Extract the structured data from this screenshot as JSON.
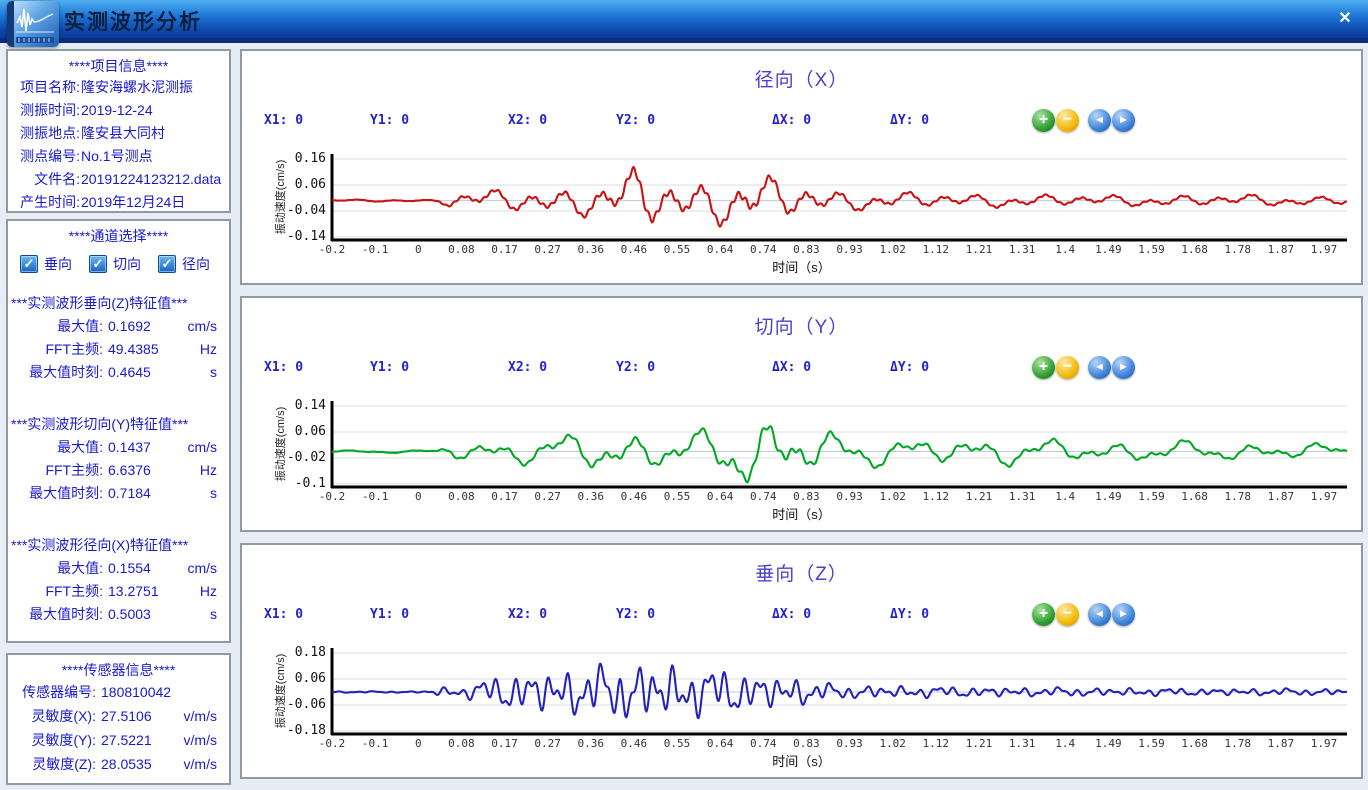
{
  "window": {
    "title": "实测波形分析",
    "close_glyph": "✕"
  },
  "sidebar": {
    "project_info": {
      "header": "****项目信息****",
      "rows": [
        {
          "label": "项目名称:",
          "value": "隆安海螺水泥测振"
        },
        {
          "label": "测振时间:",
          "value": "2019-12-24"
        },
        {
          "label": "测振地点:",
          "value": "隆安县大同村"
        },
        {
          "label": "测点编号:",
          "value": "No.1号测点"
        },
        {
          "label": "文件名:",
          "value": "20191224123212.data"
        },
        {
          "label": "产生时间:",
          "value": "2019年12月24日"
        }
      ]
    },
    "channel_select": {
      "header": "****通道选择****",
      "options": [
        {
          "name": "vertical",
          "label": "垂向",
          "checked": true
        },
        {
          "name": "tangential",
          "label": "切向",
          "checked": true
        },
        {
          "name": "radial",
          "label": "径向",
          "checked": true
        }
      ]
    },
    "feature_sections": [
      {
        "header": "***实测波形垂向(Z)特征值***",
        "rows": [
          {
            "label": "最大值:",
            "value": "0.1692",
            "unit": "cm/s"
          },
          {
            "label": "FFT主频:",
            "value": "49.4385",
            "unit": "Hz"
          },
          {
            "label": "最大值时刻:",
            "value": "0.4645",
            "unit": "s"
          }
        ]
      },
      {
        "header": "***实测波形切向(Y)特征值***",
        "rows": [
          {
            "label": "最大值:",
            "value": "0.1437",
            "unit": "cm/s"
          },
          {
            "label": "FFT主频:",
            "value": "6.6376",
            "unit": "Hz"
          },
          {
            "label": "最大值时刻:",
            "value": "0.7184",
            "unit": "s"
          }
        ]
      },
      {
        "header": "***实测波形径向(X)特征值***",
        "rows": [
          {
            "label": "最大值:",
            "value": "0.1554",
            "unit": "cm/s"
          },
          {
            "label": "FFT主频:",
            "value": "13.2751",
            "unit": "Hz"
          },
          {
            "label": "最大值时刻:",
            "value": "0.5003",
            "unit": "s"
          }
        ]
      }
    ],
    "sensor_info": {
      "header": "****传感器信息****",
      "rows": [
        {
          "label": "传感器编号:",
          "value": "180810042",
          "unit": ""
        },
        {
          "label": "灵敏度(X):",
          "value": "27.5106",
          "unit": "v/m/s"
        },
        {
          "label": "灵敏度(Y):",
          "value": "27.5221",
          "unit": "v/m/s"
        },
        {
          "label": "灵敏度(Z):",
          "value": "28.0535",
          "unit": "v/m/s"
        }
      ]
    }
  },
  "cursor_readouts": [
    {
      "name": "x1",
      "label": "X1:",
      "value": "0"
    },
    {
      "name": "y1",
      "label": "Y1:",
      "value": "0"
    },
    {
      "name": "x2",
      "label": "X2:",
      "value": "0"
    },
    {
      "name": "y2",
      "label": "Y2:",
      "value": "0"
    },
    {
      "name": "dx",
      "label": "ΔX:",
      "value": "0"
    },
    {
      "name": "dy",
      "label": "ΔY:",
      "value": "0"
    }
  ],
  "toolbar_buttons": [
    {
      "name": "zoom-in",
      "glyph": "+"
    },
    {
      "name": "zoom-out",
      "glyph": "−"
    },
    {
      "name": "pan-left",
      "glyph": "◄"
    },
    {
      "name": "pan-right",
      "glyph": "►"
    }
  ],
  "colors": {
    "accent_text_blue": "#1a1acd",
    "chart_title_purple": "#4a42cc",
    "radial_trace": "#cc1111",
    "tangential_trace": "#00a823",
    "vertical_trace": "#2222bb"
  },
  "chart_data": [
    {
      "type": "line",
      "name": "radial-x",
      "title": "径向（X）",
      "color": "#cc1111",
      "xlabel": "时间（s）",
      "ylabel": "振动速度(cm/s)",
      "xlim": [
        -0.2,
        2.02
      ],
      "ylim": [
        -0.14,
        0.16
      ],
      "x_ticks": [
        -0.2,
        -0.1,
        0,
        0.08,
        0.17,
        0.27,
        0.36,
        0.46,
        0.55,
        0.64,
        0.74,
        0.83,
        0.93,
        1.02,
        1.12,
        1.21,
        1.31,
        1.4,
        1.49,
        1.59,
        1.68,
        1.78,
        1.87,
        1.97
      ],
      "y_ticks": [
        0.16,
        0.06,
        -0.04,
        -0.14
      ],
      "grid": true,
      "legend": false,
      "stats": {
        "max_value_cm_s": 0.1554,
        "fft_dominant_hz": 13.2751,
        "max_time_s": 0.5003
      },
      "signal": {
        "baseline": 0,
        "frequencies": [
          13.3,
          6.6,
          3.1,
          61
        ],
        "weights": [
          0.45,
          0.3,
          0.18,
          0.1
        ],
        "phases": [
          0.8,
          2.2,
          5.1,
          1.4
        ],
        "envelope": [
          [
            -0.2,
            0.005
          ],
          [
            0.03,
            0.005
          ],
          [
            0.06,
            0.035
          ],
          [
            0.16,
            0.05
          ],
          [
            0.26,
            0.06
          ],
          [
            0.34,
            0.07
          ],
          [
            0.42,
            0.1
          ],
          [
            0.47,
            0.15
          ],
          [
            0.53,
            0.11
          ],
          [
            0.6,
            0.1
          ],
          [
            0.66,
            0.11
          ],
          [
            0.72,
            0.12
          ],
          [
            0.78,
            0.1
          ],
          [
            0.85,
            0.07
          ],
          [
            0.93,
            0.045
          ],
          [
            1.05,
            0.04
          ],
          [
            1.2,
            0.032
          ],
          [
            1.4,
            0.028
          ],
          [
            1.6,
            0.026
          ],
          [
            1.8,
            0.028
          ],
          [
            2.02,
            0.02
          ]
        ]
      }
    },
    {
      "type": "line",
      "name": "tangential-y",
      "title": "切向（Y）",
      "color": "#00a823",
      "xlabel": "时间（s）",
      "ylabel": "振动速度(cm/s)",
      "xlim": [
        -0.2,
        2.02
      ],
      "ylim": [
        -0.1,
        0.14
      ],
      "x_ticks": [
        -0.2,
        -0.1,
        0,
        0.08,
        0.17,
        0.27,
        0.36,
        0.46,
        0.55,
        0.64,
        0.74,
        0.83,
        0.93,
        1.02,
        1.12,
        1.21,
        1.31,
        1.4,
        1.49,
        1.59,
        1.68,
        1.78,
        1.87,
        1.97
      ],
      "y_ticks": [
        0.14,
        0.06,
        -0.02,
        -0.1
      ],
      "grid": true,
      "legend": false,
      "stats": {
        "max_value_cm_s": 0.1437,
        "fft_dominant_hz": 6.6376,
        "max_time_s": 0.7184
      },
      "signal": {
        "baseline": 0,
        "frequencies": [
          6.6,
          14.2,
          3.7,
          47
        ],
        "weights": [
          0.45,
          0.28,
          0.2,
          0.08
        ],
        "phases": [
          1.6,
          3.9,
          0.6,
          2.8
        ],
        "envelope": [
          [
            -0.2,
            0.005
          ],
          [
            0.03,
            0.005
          ],
          [
            0.06,
            0.035
          ],
          [
            0.18,
            0.045
          ],
          [
            0.28,
            0.055
          ],
          [
            0.4,
            0.08
          ],
          [
            0.5,
            0.075
          ],
          [
            0.6,
            0.07
          ],
          [
            0.7,
            0.13
          ],
          [
            0.76,
            0.14
          ],
          [
            0.83,
            0.11
          ],
          [
            0.92,
            0.06
          ],
          [
            1.05,
            0.05
          ],
          [
            1.22,
            0.055
          ],
          [
            1.35,
            0.045
          ],
          [
            1.55,
            0.04
          ],
          [
            1.75,
            0.035
          ],
          [
            2.02,
            0.03
          ]
        ]
      }
    },
    {
      "type": "line",
      "name": "vertical-z",
      "title": "垂向（Z）",
      "color": "#2222bb",
      "xlabel": "时间（s）",
      "ylabel": "振动速度(cm/s)",
      "xlim": [
        -0.2,
        2.02
      ],
      "ylim": [
        -0.18,
        0.18
      ],
      "x_ticks": [
        -0.2,
        -0.1,
        0,
        0.08,
        0.17,
        0.27,
        0.36,
        0.46,
        0.55,
        0.64,
        0.74,
        0.83,
        0.93,
        1.02,
        1.12,
        1.21,
        1.31,
        1.4,
        1.49,
        1.59,
        1.68,
        1.78,
        1.87,
        1.97
      ],
      "y_ticks": [
        0.18,
        0.06,
        -0.06,
        -0.18
      ],
      "grid": true,
      "legend": false,
      "stats": {
        "max_value_cm_s": 0.1692,
        "fft_dominant_hz": 49.4385,
        "max_time_s": 0.4645
      },
      "signal": {
        "baseline": 0,
        "frequencies": [
          26,
          44,
          12,
          8
        ],
        "weights": [
          0.4,
          0.3,
          0.22,
          0.15
        ],
        "phases": [
          0.4,
          2.0,
          3.8,
          1.1
        ],
        "envelope": [
          [
            -0.2,
            0.004
          ],
          [
            0.0,
            0.004
          ],
          [
            0.03,
            0.025
          ],
          [
            0.09,
            0.03
          ],
          [
            0.13,
            0.07
          ],
          [
            0.2,
            0.11
          ],
          [
            0.28,
            0.12
          ],
          [
            0.36,
            0.14
          ],
          [
            0.44,
            0.16
          ],
          [
            0.5,
            0.16
          ],
          [
            0.58,
            0.14
          ],
          [
            0.66,
            0.13
          ],
          [
            0.74,
            0.1
          ],
          [
            0.82,
            0.08
          ],
          [
            0.9,
            0.04
          ],
          [
            1.0,
            0.035
          ],
          [
            1.15,
            0.03
          ],
          [
            1.35,
            0.025
          ],
          [
            1.55,
            0.022
          ],
          [
            1.75,
            0.02
          ],
          [
            2.02,
            0.018
          ]
        ]
      }
    }
  ]
}
